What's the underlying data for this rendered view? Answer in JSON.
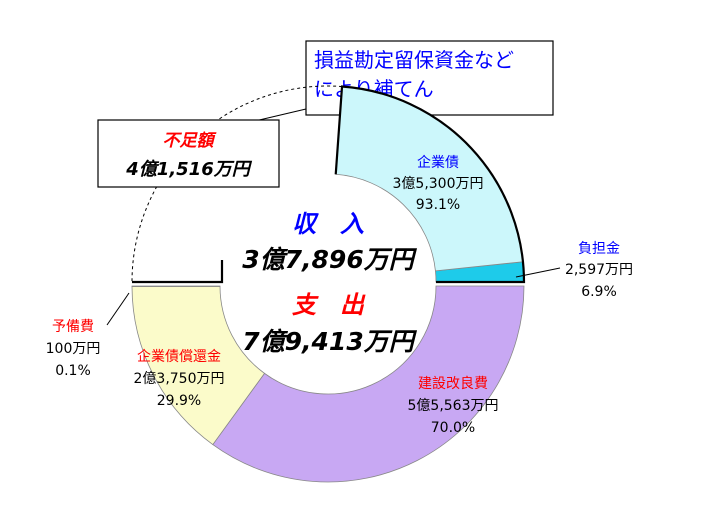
{
  "chart_data": {
    "type": "pie",
    "style": "two half-donuts (upper: revenue, lower: expenditure)",
    "center": {
      "income_label": "収　入",
      "income_total": "3億7,896万円",
      "expense_label": "支　出",
      "expense_total": "7億9,413万円"
    },
    "income": {
      "slices": [
        {
          "name": "企業債",
          "amount": "3億5,300万円",
          "percent": "93.1%",
          "share": 93.1,
          "color": "#ccf7fb"
        },
        {
          "name": "負担金",
          "amount": "2,597万円",
          "percent": "6.9%",
          "share": 6.9,
          "color": "#1ecbea"
        }
      ],
      "shortfall": {
        "name": "不足額",
        "amount": "4億1,516万円"
      }
    },
    "expense": {
      "slices": [
        {
          "name": "建設改良費",
          "amount": "5億5,563万円",
          "percent": "70.0%",
          "share": 70.0,
          "color": "#c8a8f3"
        },
        {
          "name": "企業債償還金",
          "amount": "2億3,750万円",
          "percent": "29.9%",
          "share": 29.9,
          "color": "#fbfbca"
        },
        {
          "name": "予備費",
          "amount": "100万円",
          "percent": "0.1%",
          "share": 0.1,
          "color": "#ffffff"
        }
      ]
    },
    "callout": {
      "line1": "損益勘定留保資金など",
      "line2": "により補てん"
    }
  }
}
